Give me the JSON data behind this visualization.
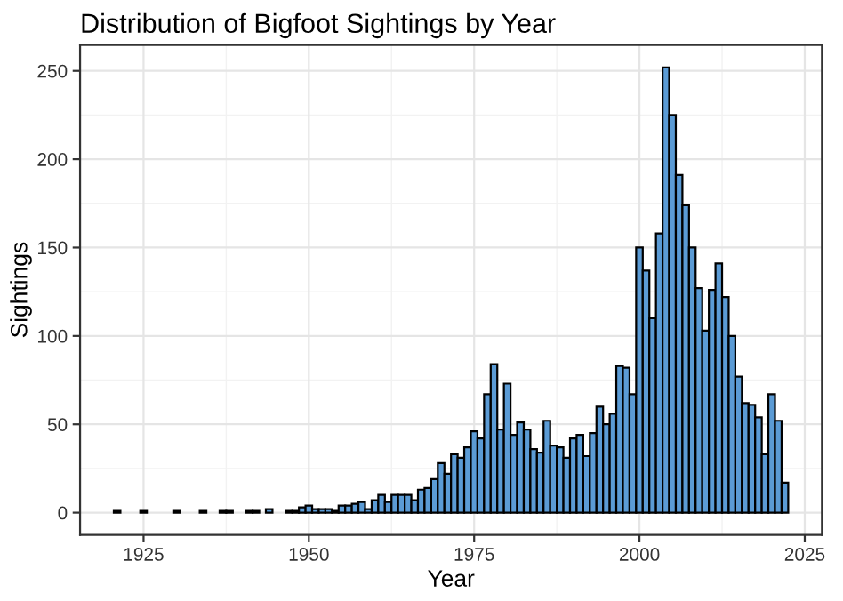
{
  "chart_data": {
    "type": "bar",
    "title": "Distribution of Bigfoot Sightings by Year",
    "xlabel": "Year",
    "ylabel": "Sightings",
    "x": [
      1921,
      1925,
      1930,
      1934,
      1937,
      1938,
      1941,
      1942,
      1944,
      1947,
      1948,
      1949,
      1950,
      1951,
      1952,
      1953,
      1954,
      1955,
      1956,
      1957,
      1958,
      1959,
      1960,
      1961,
      1962,
      1963,
      1964,
      1965,
      1966,
      1967,
      1968,
      1969,
      1970,
      1971,
      1972,
      1973,
      1974,
      1975,
      1976,
      1977,
      1978,
      1979,
      1980,
      1981,
      1982,
      1983,
      1984,
      1985,
      1986,
      1987,
      1988,
      1989,
      1990,
      1991,
      1992,
      1993,
      1994,
      1995,
      1996,
      1997,
      1998,
      1999,
      2000,
      2001,
      2002,
      2003,
      2004,
      2005,
      2006,
      2007,
      2008,
      2009,
      2010,
      2011,
      2012,
      2013,
      2014,
      2015,
      2016,
      2017,
      2018,
      2019,
      2020,
      2021,
      2022
    ],
    "values": [
      1,
      1,
      1,
      1,
      1,
      1,
      1,
      1,
      2,
      1,
      1,
      3,
      4,
      2,
      2,
      2,
      1,
      4,
      4,
      5,
      6,
      2,
      7,
      10,
      6,
      10,
      10,
      10,
      7,
      13,
      14,
      19,
      28,
      22,
      33,
      31,
      37,
      46,
      42,
      67,
      84,
      47,
      73,
      44,
      51,
      47,
      36,
      34,
      52,
      38,
      37,
      31,
      42,
      44,
      32,
      45,
      60,
      50,
      56,
      83,
      82,
      67,
      150,
      137,
      110,
      158,
      252,
      225,
      191,
      174,
      150,
      127,
      103,
      126,
      141,
      122,
      100,
      77,
      62,
      61,
      54,
      33,
      67,
      52,
      17
    ],
    "color": "#5b9bd5",
    "xlim": [
      1915.4,
      2027.6
    ],
    "xticks": [
      1925,
      1950,
      1975,
      2000,
      2025
    ],
    "ylim": [
      -12.6,
      264.6
    ],
    "yticks": [
      0,
      50,
      100,
      150,
      200,
      250
    ],
    "grid": true
  }
}
